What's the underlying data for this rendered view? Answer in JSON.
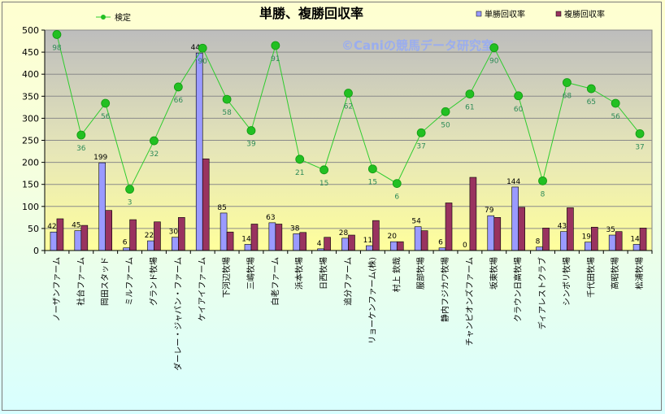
{
  "chart_data": {
    "type": "bar",
    "title": "単勝、複勝回収率",
    "watermark": "©Caniの競馬データ研究室",
    "ylim": [
      0,
      500
    ],
    "yticks": [
      0,
      50,
      100,
      150,
      200,
      250,
      300,
      350,
      400,
      450,
      500
    ],
    "grid": true,
    "legend_position": "top",
    "categories": [
      "ノーザンファーム",
      "社台ファーム",
      "岡田スタッド",
      "ミルファーム",
      "グランド牧場",
      "ダーレー・ジャパン・ファーム",
      "ケイアイファーム",
      "下河辺牧場",
      "三嶋牧場",
      "白老ファーム",
      "浜本牧場",
      "日西牧場",
      "追分ファーム",
      "リョーケンファーム(株)",
      "村上 欽哉",
      "服部牧場",
      "静内フジカワ牧場",
      "チャンピオンズファーム",
      "坂東牧場",
      "クラウン日高牧場",
      "ディアレストクラブ",
      "シンボリ牧場",
      "千代田牧場",
      "高昭牧場",
      "松浦牧場"
    ],
    "series": [
      {
        "name": "単勝回収率",
        "kind": "bar",
        "color": "#9a9aff",
        "values": [
          42,
          45,
          199,
          6,
          22,
          30,
          448,
          85,
          14,
          63,
          38,
          4,
          28,
          11,
          20,
          54,
          6,
          0,
          79,
          144,
          8,
          43,
          19,
          35,
          14
        ]
      },
      {
        "name": "複勝回収率",
        "kind": "bar",
        "color": "#99335f",
        "values": [
          72,
          57,
          91,
          70,
          65,
          75,
          208,
          42,
          60,
          60,
          41,
          30,
          35,
          68,
          20,
          45,
          108,
          166,
          75,
          98,
          51,
          97,
          53,
          43,
          51
        ]
      },
      {
        "name": "検定",
        "kind": "line",
        "color": "#2ecc2e",
        "marker": "#22c022",
        "values": [
          490,
          262,
          334,
          139,
          249,
          371,
          459,
          343,
          272,
          465,
          207,
          183,
          357,
          185,
          152,
          267,
          315,
          355,
          460,
          351,
          158,
          381,
          367,
          334,
          265
        ],
        "labels": [
          98,
          36,
          56,
          3,
          32,
          66,
          90,
          58,
          39,
          91,
          21,
          15,
          62,
          15,
          6,
          37,
          50,
          61,
          90,
          60,
          8,
          68,
          65,
          56,
          37
        ]
      }
    ]
  }
}
